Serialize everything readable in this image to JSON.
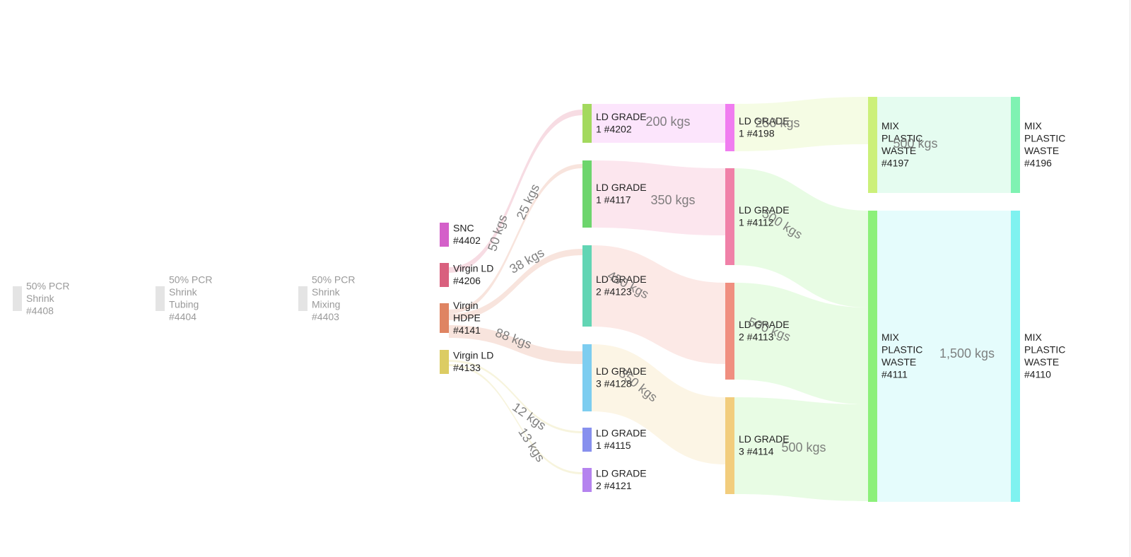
{
  "nodes": [
    {
      "id": "4408",
      "lines": [
        "50% PCR",
        "Shrink",
        "#4408"
      ],
      "color": "#e4e4e4",
      "faded": true
    },
    {
      "id": "4404",
      "lines": [
        "50% PCR",
        "Shrink",
        "Tubing",
        "#4404"
      ],
      "color": "#e4e4e4",
      "faded": true
    },
    {
      "id": "4403",
      "lines": [
        "50% PCR",
        "Shrink",
        "Mixing",
        "#4403"
      ],
      "color": "#e4e4e4",
      "faded": true
    },
    {
      "id": "4402",
      "lines": [
        "SNC",
        "#4402"
      ],
      "color": "#d460c9"
    },
    {
      "id": "4206",
      "lines": [
        "Virgin LD",
        "#4206"
      ],
      "color": "#d9607e"
    },
    {
      "id": "4141",
      "lines": [
        "Virgin",
        "HDPE",
        "#4141"
      ],
      "color": "#df8462"
    },
    {
      "id": "4133",
      "lines": [
        "Virgin LD",
        "#4133"
      ],
      "color": "#dccc63"
    },
    {
      "id": "4202",
      "lines": [
        "LD GRADE",
        "1 #4202"
      ],
      "color": "#a3d95e"
    },
    {
      "id": "4117",
      "lines": [
        "LD GRADE",
        "1 #4117"
      ],
      "color": "#6dd56d"
    },
    {
      "id": "4123",
      "lines": [
        "LD GRADE",
        "2 #4123"
      ],
      "color": "#62d5b4"
    },
    {
      "id": "4128",
      "lines": [
        "LD GRADE",
        "3 #4128"
      ],
      "color": "#7dcdf0"
    },
    {
      "id": "4115",
      "lines": [
        "LD GRADE",
        "1 #4115"
      ],
      "color": "#8790ee"
    },
    {
      "id": "4121",
      "lines": [
        "LD GRADE",
        "2 #4121"
      ],
      "color": "#b583ef"
    },
    {
      "id": "4198",
      "lines": [
        "LD GRADE",
        "1 #4198"
      ],
      "color": "#f07df0"
    },
    {
      "id": "4112",
      "lines": [
        "LD GRADE",
        "1 #4112"
      ],
      "color": "#f081a8"
    },
    {
      "id": "4113",
      "lines": [
        "LD GRADE",
        "2 #4113"
      ],
      "color": "#f08f80"
    },
    {
      "id": "4114",
      "lines": [
        "LD GRADE",
        "3 #4114"
      ],
      "color": "#f2cd7d"
    },
    {
      "id": "4197",
      "lines": [
        "MIX",
        "PLASTIC",
        "WASTE",
        "#4197"
      ],
      "color": "#ccf07a"
    },
    {
      "id": "4111",
      "lines": [
        "MIX",
        "PLASTIC",
        "WASTE",
        "#4111"
      ],
      "color": "#8cf07a"
    },
    {
      "id": "4196",
      "lines": [
        "MIX",
        "PLASTIC",
        "WASTE",
        "#4196"
      ],
      "color": "#7ff2b2"
    },
    {
      "id": "4110",
      "lines": [
        "MIX",
        "PLASTIC",
        "WASTE",
        "#4110"
      ],
      "color": "#7ff2f0"
    }
  ],
  "flows": [
    {
      "from": "4206",
      "to": "4202",
      "label": "50 kgs"
    },
    {
      "from": "4141",
      "to": "4117",
      "label": "25 kgs"
    },
    {
      "from": "4141",
      "to": "4123",
      "label": "38 kgs"
    },
    {
      "from": "4141",
      "to": "4128",
      "label": "88 kgs"
    },
    {
      "from": "4133",
      "to": "4115",
      "label": "12 kgs"
    },
    {
      "from": "4133",
      "to": "4121",
      "label": "13 kgs"
    },
    {
      "from": "4202",
      "to": "4198",
      "label": "200 kgs"
    },
    {
      "from": "4117",
      "to": "4112",
      "label": "350 kgs"
    },
    {
      "from": "4123",
      "to": "4113",
      "label": "450 kgs"
    },
    {
      "from": "4128",
      "to": "4114",
      "label": "350 kgs"
    },
    {
      "from": "4198",
      "to": "4197",
      "label": "250 kgs"
    },
    {
      "from": "4112",
      "to": "4111",
      "label": "500 kgs"
    },
    {
      "from": "4113",
      "to": "4111",
      "label": "500 kgs"
    },
    {
      "from": "4114",
      "to": "4111",
      "label": "500 kgs"
    },
    {
      "from": "4197",
      "to": "4196",
      "label": "500 kgs"
    },
    {
      "from": "4111",
      "to": "4110",
      "label": "1,500 kgs"
    }
  ]
}
